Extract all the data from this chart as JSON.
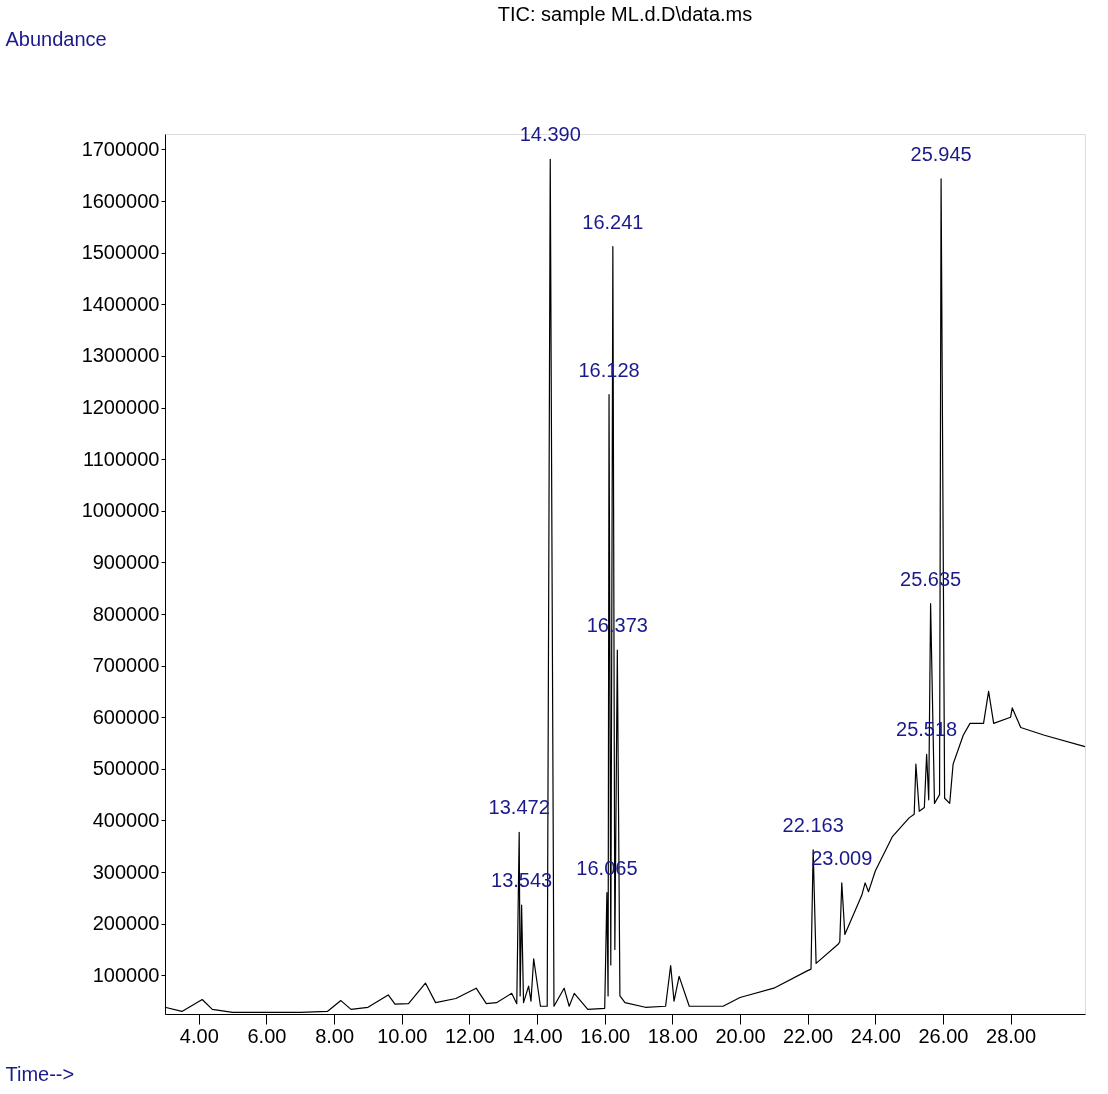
{
  "chart_data": {
    "type": "line",
    "title": "TIC: sample ML.d.D\\data.ms",
    "xlabel": "Time-->",
    "ylabel": "Abundance",
    "xlim": [
      3.0,
      30.2
    ],
    "ylim": [
      25000,
      1730000
    ],
    "xticks": [
      {
        "value": 4,
        "label": "4.00"
      },
      {
        "value": 6,
        "label": "6.00"
      },
      {
        "value": 8,
        "label": "8.00"
      },
      {
        "value": 10,
        "label": "10.00"
      },
      {
        "value": 12,
        "label": "12.00"
      },
      {
        "value": 14,
        "label": "14.00"
      },
      {
        "value": 16,
        "label": "16.00"
      },
      {
        "value": 18,
        "label": "18.00"
      },
      {
        "value": 20,
        "label": "20.00"
      },
      {
        "value": 22,
        "label": "22.00"
      },
      {
        "value": 24,
        "label": "24.00"
      },
      {
        "value": 26,
        "label": "26.00"
      },
      {
        "value": 28,
        "label": "28.00"
      }
    ],
    "yticks": [
      100000,
      200000,
      300000,
      400000,
      500000,
      600000,
      700000,
      800000,
      900000,
      1000000,
      1100000,
      1200000,
      1300000,
      1400000,
      1500000,
      1600000,
      1700000
    ],
    "grid": false,
    "marker": "none",
    "line_style": "solid",
    "series": [
      {
        "color": "#000000",
        "x": [
          3.0,
          3.5,
          4.1,
          4.4,
          5.0,
          6.0,
          7.0,
          7.8,
          8.2,
          8.5,
          9.0,
          9.6,
          9.8,
          10.2,
          10.7,
          11.0,
          11.6,
          12.2,
          12.5,
          12.8,
          13.25,
          13.4,
          13.472,
          13.5,
          13.543,
          13.6,
          13.75,
          13.82,
          13.9,
          14.1,
          14.3,
          14.39,
          14.5,
          14.8,
          14.95,
          15.1,
          15.5,
          16.0,
          16.065,
          16.1,
          16.128,
          16.18,
          16.241,
          16.3,
          16.373,
          16.45,
          16.6,
          17.2,
          17.8,
          17.95,
          18.05,
          18.2,
          18.5,
          19.5,
          20.0,
          21.0,
          22.0,
          22.1,
          22.163,
          22.25,
          22.9,
          22.95,
          23.009,
          23.1,
          23.6,
          23.7,
          23.8,
          24.0,
          24.5,
          25.0,
          25.15,
          25.2,
          25.3,
          25.45,
          25.518,
          25.58,
          25.635,
          25.75,
          25.9,
          25.945,
          26.05,
          26.2,
          26.3,
          26.6,
          26.8,
          27.2,
          27.35,
          27.5,
          28.0,
          28.05,
          28.3,
          29.0,
          30.2
        ],
        "values": [
          38000,
          30000,
          53000,
          34000,
          28000,
          28000,
          28000,
          30000,
          51000,
          34000,
          38000,
          62000,
          44000,
          45000,
          85000,
          47000,
          55000,
          75000,
          45000,
          47000,
          65000,
          45000,
          377000,
          60000,
          236000,
          47000,
          79000,
          50000,
          132000,
          40000,
          40000,
          1681000,
          40000,
          75000,
          40000,
          65000,
          34000,
          36000,
          260000,
          60000,
          1225000,
          120000,
          1512000,
          150000,
          730000,
          60000,
          47000,
          38000,
          40000,
          119000,
          50000,
          98000,
          40000,
          40000,
          57000,
          75000,
          109000,
          112000,
          343000,
          123000,
          160000,
          165000,
          279000,
          179000,
          255000,
          279000,
          262000,
          302000,
          368000,
          405000,
          412000,
          509000,
          418000,
          425000,
          528000,
          440000,
          820000,
          433000,
          450000,
          1643000,
          443000,
          433000,
          509000,
          565000,
          588000,
          588000,
          650000,
          588000,
          600000,
          618000,
          580000,
          565000,
          543000
        ]
      }
    ],
    "annotations": [
      {
        "text": "14.390",
        "x": 14.39,
        "y": 1681000
      },
      {
        "text": "16.241",
        "x": 16.241,
        "y": 1512000
      },
      {
        "text": "16.128",
        "x": 16.128,
        "y": 1225000
      },
      {
        "text": "13.472",
        "x": 13.472,
        "y": 377000
      },
      {
        "text": "13.543",
        "x": 13.543,
        "y": 236000
      },
      {
        "text": "16.373",
        "x": 16.373,
        "y": 730000
      },
      {
        "text": "16.065",
        "x": 16.065,
        "y": 260000
      },
      {
        "text": "22.163",
        "x": 22.163,
        "y": 343000
      },
      {
        "text": "23.009",
        "x": 23.009,
        "y": 279000
      },
      {
        "text": "25.945",
        "x": 25.945,
        "y": 1643000
      },
      {
        "text": "25.635",
        "x": 25.635,
        "y": 820000
      },
      {
        "text": "25.518",
        "x": 25.518,
        "y": 528000
      }
    ]
  }
}
